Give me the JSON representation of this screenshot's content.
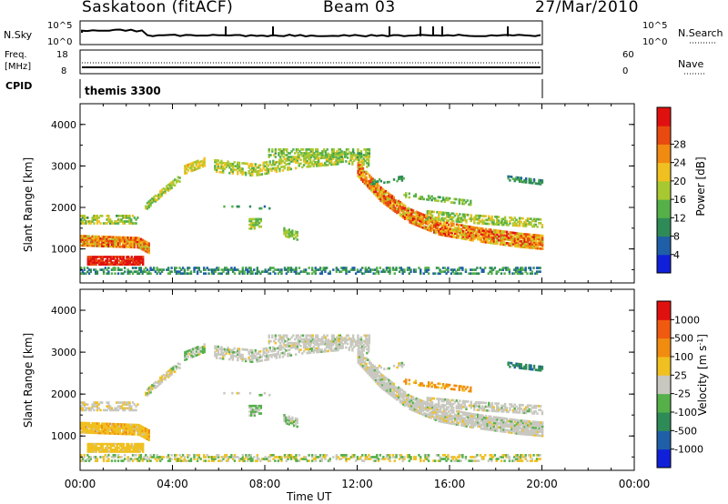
{
  "header": {
    "station": "Saskatoon (fitACF)",
    "beam": "Beam 03",
    "date": "27/Mar/2010"
  },
  "noise_panel": {
    "left_label": "N.Sky",
    "right_label": "N.Search",
    "left_ticks": [
      "10^5",
      "10^0"
    ],
    "right_ticks": [
      "10^5",
      "10^0"
    ]
  },
  "freq_panel": {
    "left_label_1": "Freq.",
    "left_label_2": "[MHz]",
    "right_label": "Nave",
    "left_ticks": [
      "18",
      "8"
    ],
    "right_ticks": [
      "60",
      "0"
    ]
  },
  "cpid": {
    "label": "CPID",
    "value": "themis 3300"
  },
  "colors": {
    "power": [
      "#1020d8",
      "#1f5fa8",
      "#2e8b57",
      "#55b04a",
      "#a8c832",
      "#f0c020",
      "#f08a10",
      "#e84a10",
      "#e01010"
    ],
    "velocity": [
      "#e01010",
      "#f05a10",
      "#f08c10",
      "#f0c020",
      "#c8c8c0",
      "#55b04a",
      "#2e8b57",
      "#1f5fa8",
      "#1020d8"
    ]
  },
  "chart_data": [
    {
      "type": "heatmap",
      "title": "Power",
      "ylabel": "Slant Range [km]",
      "xlabel": "Time UT",
      "xlim": [
        0,
        24
      ],
      "ylim": [
        180,
        4500
      ],
      "x_ticks": [
        "00:00",
        "04:00",
        "08:00",
        "12:00",
        "16:00",
        "20:00",
        "00:00"
      ],
      "y_ticks": [
        "1000",
        "2000",
        "3000",
        "4000"
      ],
      "colorbar_label": "Power [dB]",
      "colorbar_ticks": [
        "4",
        "8",
        "12",
        "16",
        "20",
        "24",
        "28"
      ],
      "colorbar_range": [
        0,
        32
      ]
    },
    {
      "type": "heatmap",
      "title": "Velocity",
      "ylabel": "Slant Range [km]",
      "xlabel": "Time UT",
      "xlim": [
        0,
        24
      ],
      "ylim": [
        180,
        4500
      ],
      "x_ticks": [
        "00:00",
        "04:00",
        "08:00",
        "12:00",
        "16:00",
        "20:00",
        "00:00"
      ],
      "y_ticks": [
        "1000",
        "2000",
        "3000",
        "4000"
      ],
      "colorbar_label": "Velocity [m s^-1]",
      "colorbar_ticks": [
        "1000",
        "500",
        "100",
        "25",
        "-25",
        "-100",
        "-500",
        "-1000"
      ]
    }
  ]
}
